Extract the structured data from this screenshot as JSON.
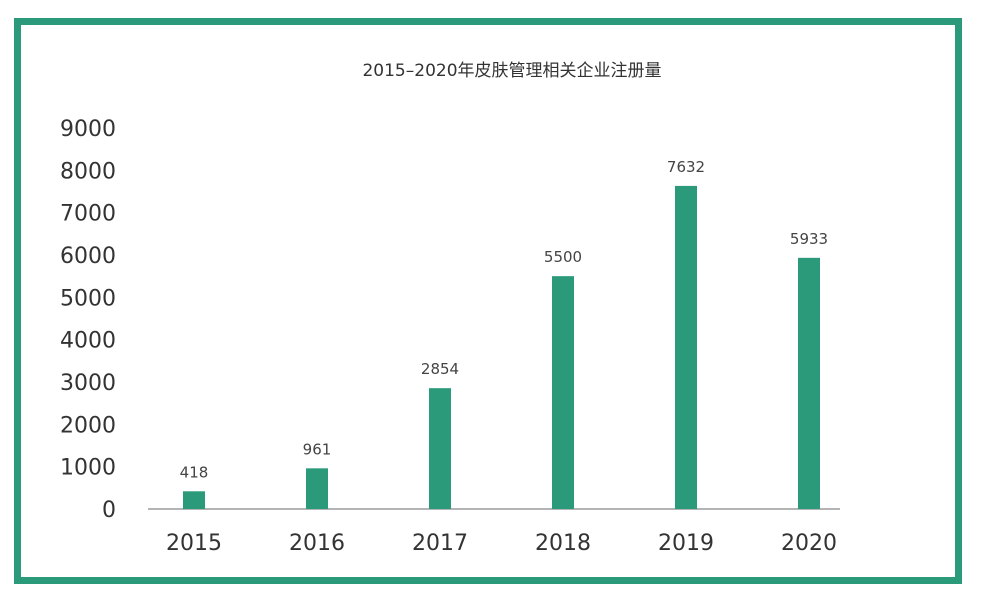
{
  "chart_data": {
    "type": "bar",
    "title": "2015–2020年皮肤管理相关企业注册量",
    "xlabel": "",
    "ylabel": "",
    "categories": [
      "2015",
      "2016",
      "2017",
      "2018",
      "2019",
      "2020"
    ],
    "values": [
      418,
      961,
      2854,
      5500,
      7632,
      5933
    ],
    "data_labels": [
      "418",
      "961",
      "2854",
      "5500",
      "7632",
      "5933"
    ],
    "ylim": [
      0,
      9000
    ],
    "yticks": [
      0,
      1000,
      2000,
      3000,
      4000,
      5000,
      6000,
      7000,
      8000,
      9000
    ],
    "ytick_labels": [
      "0",
      "1000",
      "2000",
      "3000",
      "4000",
      "5000",
      "6000",
      "7000",
      "8000",
      "9000"
    ],
    "grid": false,
    "legend": "none",
    "colors": {
      "bar": "#2a9a7a",
      "frame": "#2a9a7a",
      "axis": "#888888"
    }
  }
}
